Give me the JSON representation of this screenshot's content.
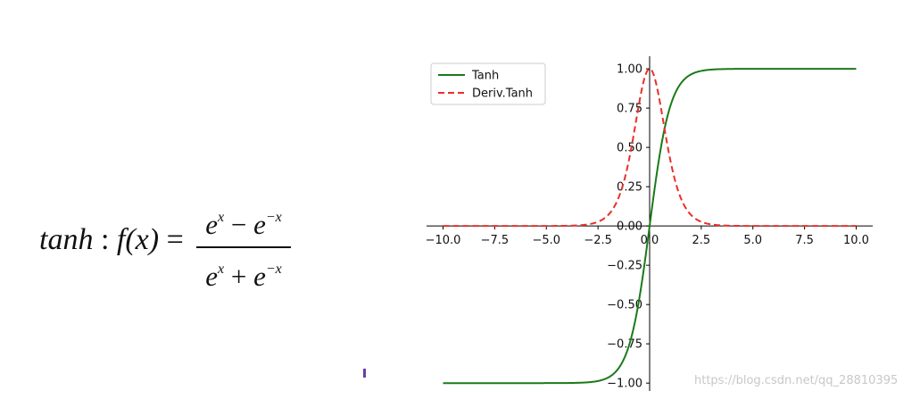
{
  "formula": {
    "name": "tanh",
    "sep": " : ",
    "func": "f",
    "arg": "(x)",
    "eq": " = ",
    "num_base1": "e",
    "num_exp1": "x",
    "num_op": " − ",
    "num_base2": "e",
    "num_exp2": "−x",
    "den_base1": "e",
    "den_exp1": "x",
    "den_op": " + ",
    "den_base2": "e",
    "den_exp2": "−x"
  },
  "watermark": "https://blog.csdn.net/qq_28810395",
  "colors": {
    "tanh": "#1a7a1a",
    "deriv": "#e8302a",
    "axis": "#000000"
  },
  "chart_data": {
    "type": "line",
    "xlim": [
      -10.8,
      10.8
    ],
    "ylim": [
      -1.05,
      1.08
    ],
    "x_ticks": [
      -10.0,
      -7.5,
      -5.0,
      -2.5,
      0.0,
      2.5,
      5.0,
      7.5,
      10.0
    ],
    "x_tick_labels": [
      "−10.0",
      "−7.5",
      "−5.0",
      "−2.5",
      "0.0",
      "2.5",
      "5.0",
      "7.5",
      "10.0"
    ],
    "y_ticks": [
      -1.0,
      -0.75,
      -0.5,
      -0.25,
      0.0,
      0.25,
      0.5,
      0.75,
      1.0
    ],
    "y_tick_labels": [
      "−1.00",
      "−0.75",
      "−0.50",
      "−0.25",
      "0.00",
      "0.25",
      "0.50",
      "0.75",
      "1.00"
    ],
    "x_domain": [
      -10,
      10
    ],
    "legend_position": "top-left",
    "grid": false,
    "series": [
      {
        "name": "Tanh",
        "style": "solid",
        "color": "#1a7a1a",
        "x": [
          -10,
          -8,
          -6,
          -4,
          -3,
          -2.5,
          -2,
          -1.5,
          -1,
          -0.75,
          -0.5,
          -0.25,
          0,
          0.25,
          0.5,
          0.75,
          1,
          1.5,
          2,
          2.5,
          3,
          4,
          6,
          8,
          10
        ],
        "y": [
          -1.0,
          -1.0,
          -1.0,
          -0.999,
          -0.995,
          -0.987,
          -0.964,
          -0.905,
          -0.762,
          -0.635,
          -0.462,
          -0.245,
          0.0,
          0.245,
          0.462,
          0.635,
          0.762,
          0.905,
          0.964,
          0.987,
          0.995,
          0.999,
          1.0,
          1.0,
          1.0
        ]
      },
      {
        "name": "Deriv.Tanh",
        "style": "dashed",
        "color": "#e8302a",
        "x": [
          -10,
          -8,
          -6,
          -4,
          -3,
          -2.5,
          -2,
          -1.5,
          -1,
          -0.75,
          -0.5,
          -0.25,
          0,
          0.25,
          0.5,
          0.75,
          1,
          1.5,
          2,
          2.5,
          3,
          4,
          6,
          8,
          10
        ],
        "y": [
          0.0,
          0.0,
          0.0,
          0.001,
          0.01,
          0.026,
          0.071,
          0.181,
          0.42,
          0.597,
          0.786,
          0.94,
          1.0,
          0.94,
          0.786,
          0.597,
          0.42,
          0.181,
          0.071,
          0.026,
          0.01,
          0.001,
          0.0,
          0.0,
          0.0
        ]
      }
    ]
  }
}
